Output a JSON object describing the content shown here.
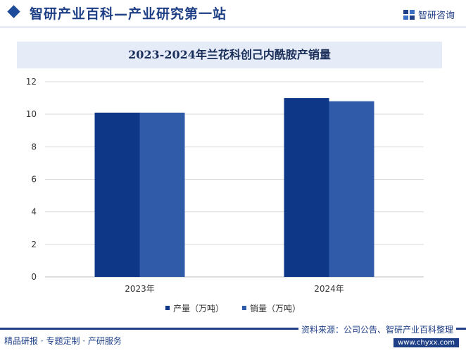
{
  "header": {
    "title": "智研产业百科—产业研究第一站",
    "brand": "智研咨询"
  },
  "colors": {
    "series_1": "#0e3787",
    "series_2": "#2f5ba8",
    "grid": "#d9d9d9",
    "accent": "#1e3f86"
  },
  "chart_data": {
    "type": "bar",
    "title": "2023-2024年兰花科创己内酰胺产销量",
    "categories": [
      "2023年",
      "2024年"
    ],
    "series": [
      {
        "name": "产量（万吨）",
        "values": [
          10.1,
          11.0
        ]
      },
      {
        "name": "销量（万吨）",
        "values": [
          10.1,
          10.8
        ]
      }
    ],
    "ylim": [
      0,
      12
    ],
    "yticks": [
      "0",
      "2",
      "4",
      "6",
      "8",
      "10",
      "12"
    ],
    "grid": true,
    "legend": "bottom"
  },
  "footer": {
    "left_text": "精品研报 · 专题定制 · 产研服务",
    "source": "资料来源：公司公告、智研产业百科整理",
    "url": "www.chyxx.com"
  }
}
